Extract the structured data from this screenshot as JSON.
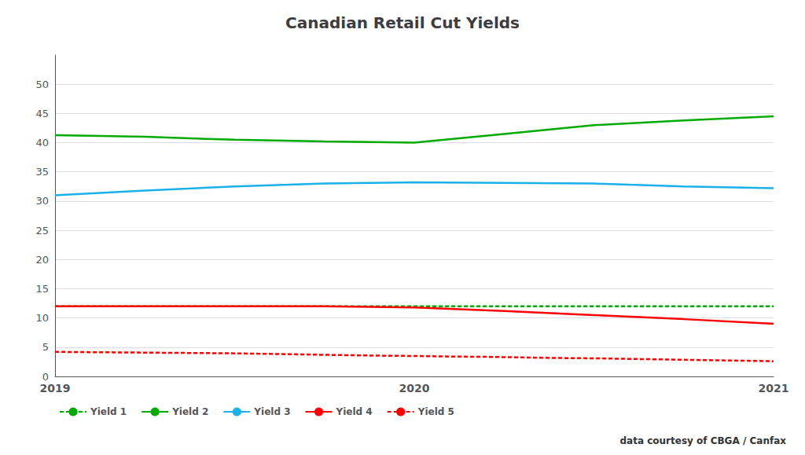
{
  "chart_data": {
    "type": "line",
    "title": "Canadian Retail Cut Yields",
    "annotation": "data courtesy of CBGA / Canfax",
    "xlim": [
      2019,
      2021
    ],
    "xticks": [
      2019,
      2020,
      2021
    ],
    "ylim": [
      0,
      55
    ],
    "yticks": [
      0,
      5,
      10,
      15,
      20,
      25,
      30,
      35,
      40,
      45,
      50
    ],
    "grid": true,
    "legend": "bottom",
    "series": [
      {
        "name": "Yield 1",
        "color": "#00aa00",
        "line_style": "dashed",
        "x": [
          2019,
          2019.1,
          2019.2,
          2019.3,
          2019.4,
          2019.5,
          2019.6,
          2019.7,
          2019.8,
          2019.9,
          2020,
          2020.1,
          2020.2,
          2020.3,
          2020.4,
          2020.5,
          2020.6,
          2020.7,
          2020.8,
          2020.9,
          2021
        ],
        "values": [
          12,
          12,
          12,
          12,
          12,
          12,
          12,
          12,
          12,
          12,
          12,
          12,
          12,
          12,
          12,
          12,
          12,
          12,
          12,
          12,
          12
        ]
      },
      {
        "name": "Yield 2",
        "color": "#00aa00",
        "line_style": "solid",
        "x": [
          2019,
          2019.25,
          2019.5,
          2019.75,
          2020,
          2020.25,
          2020.5,
          2020.75,
          2021
        ],
        "values": [
          41.3,
          41.0,
          40.5,
          40.2,
          40.0,
          41.5,
          43.0,
          43.8,
          44.5
        ]
      },
      {
        "name": "Yield 3",
        "color": "#1ab0e8",
        "line_style": "solid",
        "x": [
          2019,
          2019.25,
          2019.5,
          2019.75,
          2020,
          2020.25,
          2020.5,
          2020.75,
          2021
        ],
        "values": [
          31.0,
          31.8,
          32.5,
          33.0,
          33.2,
          33.1,
          33.0,
          32.5,
          32.2
        ]
      },
      {
        "name": "Yield 4",
        "color": "#ff0000",
        "line_style": "solid",
        "x": [
          2019,
          2019.25,
          2019.5,
          2019.75,
          2020,
          2020.25,
          2020.5,
          2020.75,
          2021
        ],
        "values": [
          12.0,
          12.0,
          12.0,
          12.0,
          11.8,
          11.2,
          10.5,
          9.8,
          9.0
        ]
      },
      {
        "name": "Yield 5",
        "color": "#ff0000",
        "line_style": "dashed",
        "x": [
          2019,
          2019.1,
          2019.2,
          2019.3,
          2019.4,
          2019.5,
          2019.6,
          2019.7,
          2019.8,
          2019.9,
          2020,
          2020.1,
          2020.2,
          2020.3,
          2020.4,
          2020.5,
          2020.6,
          2020.7,
          2020.8,
          2020.9,
          2021
        ],
        "values": [
          4.2,
          4.15,
          4.1,
          4.05,
          4.0,
          3.95,
          3.85,
          3.75,
          3.65,
          3.55,
          3.5,
          3.4,
          3.35,
          3.25,
          3.15,
          3.1,
          3.0,
          2.9,
          2.8,
          2.7,
          2.6
        ]
      }
    ]
  }
}
